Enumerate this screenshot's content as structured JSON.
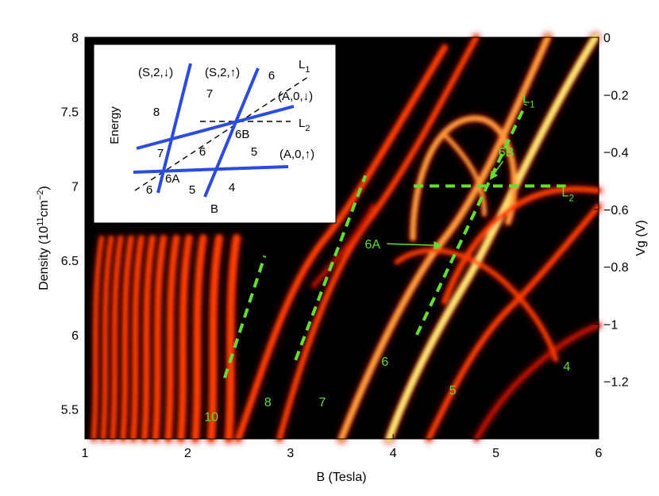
{
  "chart_data": {
    "type": "heatmap",
    "xlabel": "B (Tesla)",
    "ylabel": "Density (10",
    "ylabel_sup1": "11",
    "ylabel_unit": "cm",
    "ylabel_sup2": "−2",
    "ylabel_close": ")",
    "y2label": "Vg (V)",
    "xlim": [
      1,
      6
    ],
    "ylim": [
      5.3,
      8
    ],
    "y2lim": [
      -1.4,
      0
    ],
    "x_ticks": [
      "1",
      "2",
      "3",
      "4",
      "5",
      "6"
    ],
    "y_ticks": [
      "5.5",
      "6",
      "6.5",
      "7",
      "7.5",
      "8"
    ],
    "y2_ticks": [
      "0",
      "−0.2",
      "−0.4",
      "−0.6",
      "−0.8",
      "−1",
      "−1.2"
    ],
    "y2_tick_values": [
      0,
      -0.2,
      -0.4,
      -0.6,
      -0.8,
      -1.0,
      -1.2
    ],
    "colormap": [
      "#000000",
      "#5a0000",
      "#c01000",
      "#ff3c00",
      "#ff9a3c",
      "#ffe070"
    ],
    "annotation_color": "#66dd33",
    "filling_factors": [
      {
        "label": "10",
        "x": 2.23,
        "y": 5.42
      },
      {
        "label": "8",
        "x": 2.78,
        "y": 5.52
      },
      {
        "label": "7",
        "x": 3.31,
        "y": 5.52
      },
      {
        "label": "6",
        "x": 3.92,
        "y": 5.79
      },
      {
        "label": "5",
        "x": 4.58,
        "y": 5.6
      },
      {
        "label": "4",
        "x": 5.69,
        "y": 5.76
      }
    ],
    "dashed_lines": [
      {
        "x": [
          2.36,
          2.75
        ],
        "y": [
          5.71,
          6.53
        ]
      },
      {
        "x": [
          3.05,
          3.73
        ],
        "y": [
          5.83,
          7.07
        ]
      },
      {
        "x": [
          4.23,
          5.29
        ],
        "y": [
          6.0,
          7.55
        ]
      },
      {
        "x": [
          4.2,
          5.68
        ],
        "y": [
          7.0,
          7.0
        ]
      }
    ],
    "line_labels": [
      {
        "label": "L",
        "sub": "1",
        "x": 5.26,
        "y": 7.56
      },
      {
        "label": "L",
        "sub": "2",
        "x": 5.64,
        "y": 6.93
      }
    ],
    "point_labels": [
      {
        "label": "6B",
        "x": 5.1,
        "y": 7.2,
        "arrow_to": [
          4.95,
          7.05
        ]
      },
      {
        "label": "6A",
        "x": 3.8,
        "y": 6.58,
        "arrow_to": [
          4.46,
          6.6
        ]
      }
    ],
    "inset": {
      "ylabel": "Energy",
      "xlabel": "B",
      "levels": [
        {
          "name": "(S,2,↓)",
          "kind": "solid"
        },
        {
          "name": "(S,2,↑)",
          "kind": "solid"
        },
        {
          "name": "(A,0,↓)",
          "kind": "solid"
        },
        {
          "name": "(A,0,↑)",
          "kind": "solid"
        }
      ],
      "guide_lines": [
        {
          "label": "L",
          "sub": "1"
        },
        {
          "label": "L",
          "sub": "2"
        }
      ],
      "crossings": [
        "6A",
        "6B"
      ],
      "region_numbers": [
        {
          "label": "8",
          "px": [
            197,
            146
          ]
        },
        {
          "label": "7",
          "px": [
            264,
            123
          ]
        },
        {
          "label": "6",
          "px": [
            342,
            100
          ]
        },
        {
          "label": "7",
          "px": [
            202,
            198
          ]
        },
        {
          "label": "6",
          "px": [
            255,
            196
          ]
        },
        {
          "label": "5",
          "px": [
            320,
            196
          ]
        },
        {
          "label": "6",
          "px": [
            188,
            244
          ]
        },
        {
          "label": "5",
          "px": [
            242,
            244
          ]
        },
        {
          "label": "4",
          "px": [
            292,
            241
          ]
        }
      ]
    }
  }
}
